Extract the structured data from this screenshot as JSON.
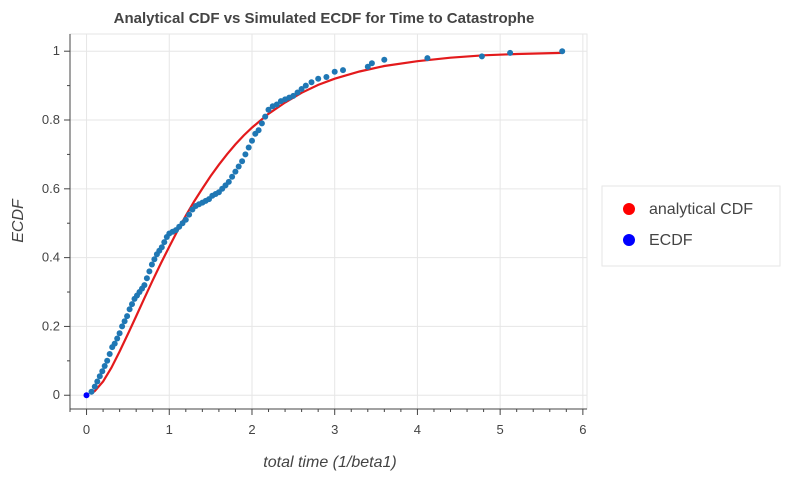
{
  "chart_data": {
    "type": "scatter",
    "title": "Analytical CDF vs Simulated ECDF for Time to Catastrophe",
    "xlabel": "total time (1/beta1)",
    "ylabel": "ECDF",
    "xlim": [
      -0.2,
      6.05
    ],
    "ylim": [
      -0.04,
      1.05
    ],
    "x_ticks": [
      0,
      1,
      2,
      3,
      4,
      5,
      6
    ],
    "y_ticks": [
      0,
      0.2,
      0.4,
      0.6,
      0.8,
      1
    ],
    "y_tick_labels": [
      "0",
      "0.2",
      "0.4",
      "0.6",
      "0.8",
      "1"
    ],
    "grid": true,
    "legend_position": "right",
    "colors": {
      "analytical_line": "#e31a1c",
      "ecdf_points": "#1f77b4",
      "legend_analytical": "#ff0000",
      "legend_ecdf": "#0000ff",
      "grid": "#e6e6e6",
      "axis": "#444444"
    },
    "series": [
      {
        "name": "analytical CDF",
        "kind": "line",
        "x": [
          0.05,
          0.1,
          0.2,
          0.3,
          0.4,
          0.5,
          0.6,
          0.7,
          0.8,
          0.9,
          1.0,
          1.1,
          1.2,
          1.3,
          1.4,
          1.5,
          1.6,
          1.7,
          1.8,
          1.9,
          2.0,
          2.2,
          2.4,
          2.6,
          2.8,
          3.0,
          3.3,
          3.6,
          4.0,
          4.4,
          4.8,
          5.2,
          5.75
        ],
        "y": [
          0.004,
          0.012,
          0.04,
          0.08,
          0.127,
          0.178,
          0.23,
          0.282,
          0.334,
          0.384,
          0.432,
          0.478,
          0.522,
          0.563,
          0.601,
          0.637,
          0.67,
          0.701,
          0.729,
          0.755,
          0.778,
          0.818,
          0.851,
          0.879,
          0.902,
          0.92,
          0.941,
          0.957,
          0.971,
          0.981,
          0.988,
          0.992,
          0.995
        ]
      },
      {
        "name": "ECDF",
        "kind": "scatter",
        "x": [
          0.0,
          0.06,
          0.1,
          0.13,
          0.16,
          0.19,
          0.22,
          0.25,
          0.28,
          0.31,
          0.34,
          0.37,
          0.4,
          0.43,
          0.46,
          0.49,
          0.52,
          0.55,
          0.58,
          0.61,
          0.64,
          0.67,
          0.7,
          0.73,
          0.76,
          0.79,
          0.82,
          0.85,
          0.88,
          0.91,
          0.94,
          0.97,
          1.0,
          1.04,
          1.08,
          1.12,
          1.16,
          1.2,
          1.24,
          1.28,
          1.32,
          1.36,
          1.4,
          1.44,
          1.48,
          1.52,
          1.56,
          1.6,
          1.64,
          1.68,
          1.72,
          1.76,
          1.8,
          1.84,
          1.88,
          1.92,
          1.96,
          2.0,
          2.04,
          2.08,
          2.12,
          2.16,
          2.2,
          2.25,
          2.3,
          2.35,
          2.4,
          2.45,
          2.5,
          2.55,
          2.6,
          2.65,
          2.72,
          2.8,
          2.9,
          3.0,
          3.1,
          3.4,
          3.45,
          3.6,
          4.12,
          4.78,
          5.12,
          5.75
        ],
        "y": [
          0.0,
          0.01,
          0.025,
          0.04,
          0.055,
          0.07,
          0.085,
          0.1,
          0.12,
          0.14,
          0.15,
          0.165,
          0.18,
          0.2,
          0.215,
          0.23,
          0.25,
          0.265,
          0.28,
          0.29,
          0.3,
          0.31,
          0.32,
          0.34,
          0.36,
          0.38,
          0.395,
          0.41,
          0.42,
          0.43,
          0.445,
          0.46,
          0.47,
          0.475,
          0.48,
          0.49,
          0.5,
          0.51,
          0.525,
          0.54,
          0.55,
          0.555,
          0.56,
          0.565,
          0.57,
          0.58,
          0.585,
          0.59,
          0.6,
          0.61,
          0.62,
          0.635,
          0.65,
          0.665,
          0.68,
          0.7,
          0.72,
          0.74,
          0.76,
          0.77,
          0.79,
          0.81,
          0.83,
          0.84,
          0.845,
          0.855,
          0.86,
          0.865,
          0.87,
          0.88,
          0.89,
          0.9,
          0.91,
          0.92,
          0.925,
          0.94,
          0.945,
          0.955,
          0.965,
          0.975,
          0.98,
          0.985,
          0.995,
          1.0
        ]
      }
    ]
  }
}
